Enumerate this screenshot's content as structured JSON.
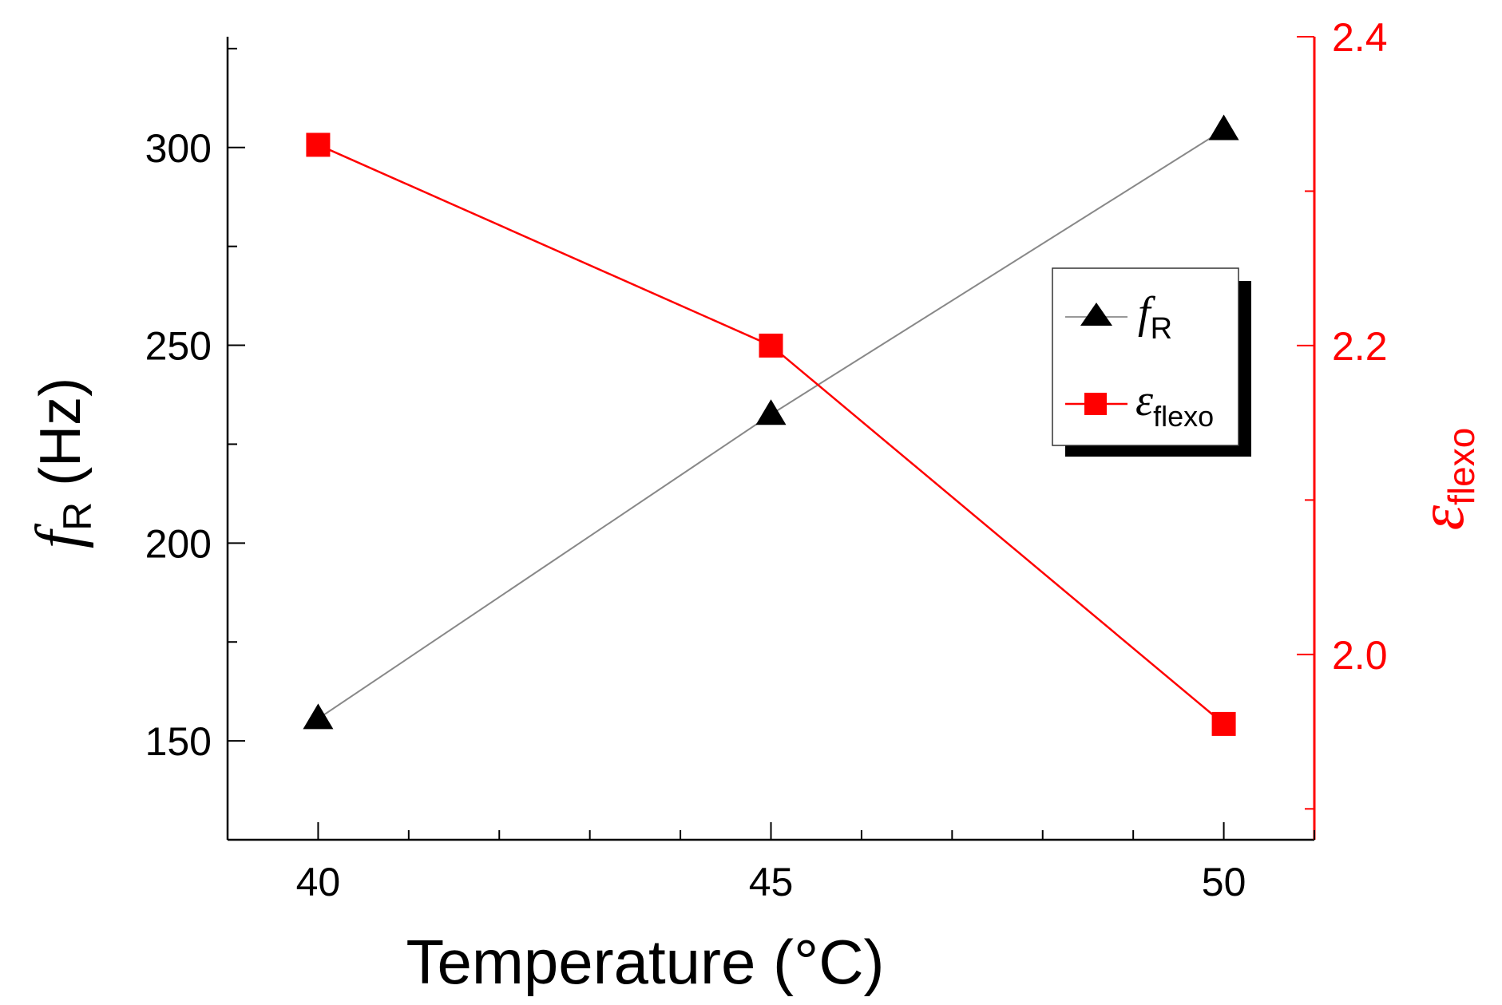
{
  "chart_data": {
    "type": "line",
    "xlabel": "Temperature (°C)",
    "ylabel": {
      "main": "f",
      "sub": "R",
      "unit": " (Hz)"
    },
    "y2label": {
      "main": "ε",
      "sub": "flexo"
    },
    "x": [
      40,
      45,
      50
    ],
    "xlim": [
      39,
      51
    ],
    "ylim": [
      125,
      328
    ],
    "y2lim": [
      1.88,
      2.4
    ],
    "xticks": [
      "40",
      "45",
      "50"
    ],
    "yticks": [
      "150",
      "200",
      "250",
      "300"
    ],
    "y2ticks": [
      "2.0",
      "2.2",
      "2.4"
    ],
    "series": [
      {
        "name": {
          "main": "f",
          "sub": "R"
        },
        "axis": "left",
        "marker": "triangle",
        "color": "#000000",
        "values": [
          155.6,
          232.5,
          304.5
        ]
      },
      {
        "name": {
          "main": "ε",
          "sub": "flexo"
        },
        "axis": "right",
        "marker": "square",
        "color": "#ff0000",
        "values": [
          2.33,
          2.2,
          1.955
        ]
      }
    ],
    "legend": "right-center",
    "grid": false
  },
  "colors": {
    "left_axis": "#000000",
    "right_axis": "#ff0000",
    "series_f": "#000000",
    "series_eps": "#ff0000"
  }
}
